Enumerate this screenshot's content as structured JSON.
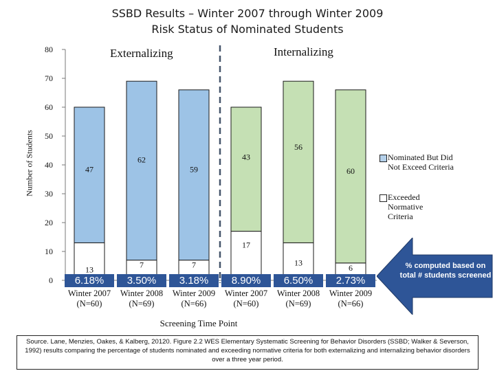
{
  "title_line1": "SSBD Results – Winter 2007 through Winter 2009",
  "title_line2": "Risk Status of Nominated Students",
  "section_labels": {
    "left": "Externalizing",
    "right": "Internalizing"
  },
  "legend": [
    {
      "label": "Nominated But Did Not Exceed Criteria"
    },
    {
      "label": "Exceeded Normative Criteria"
    }
  ],
  "arrow_note": "% computed based on total # students screened",
  "source_text": "Source. Lane, Menzies, Oakes, & Kalberg, 20120. Figure 2.2 WES Elementary Systematic Screening for Behavior Disorders (SSBD; Walker & Severson, 1992) results comparing the percentage of students nominated and exceeding normative criteria for both externalizing and internalizing behavior disorders over a three year period.",
  "colors": {
    "externalizing": "#9dc3e6",
    "internalizing": "#c5e0b4",
    "exceeded": "#ffffff",
    "percent_text": "#ffffff",
    "percent_bg": "#2e5597",
    "arrow": "#2e5597",
    "divider": "#44546a"
  },
  "chart_data": {
    "type": "bar",
    "stacked": true,
    "xlabel": "Screening Time Point",
    "ylabel": "Number of Students",
    "ylim": [
      0,
      80
    ],
    "yticks": [
      0,
      10,
      20,
      30,
      40,
      50,
      60,
      70,
      80
    ],
    "grid": false,
    "legend_position": "right",
    "categories": [
      {
        "line1": "Winter 2007",
        "line2": "(N=60)",
        "group": "externalizing"
      },
      {
        "line1": "Winter 2008",
        "line2": "(N=69)",
        "group": "externalizing"
      },
      {
        "line1": "Winter 2009",
        "line2": "(N=66)",
        "group": "externalizing"
      },
      {
        "line1": "Winter 2007",
        "line2": "(N=60)",
        "group": "internalizing"
      },
      {
        "line1": "Winter 2008",
        "line2": "(N=69)",
        "group": "internalizing"
      },
      {
        "line1": "Winter 2009",
        "line2": "(N=66)",
        "group": "internalizing"
      }
    ],
    "series": [
      {
        "name": "Exceeded Normative Criteria",
        "values": [
          13,
          7,
          7,
          17,
          13,
          6
        ]
      },
      {
        "name": "Nominated But Did Not Exceed Criteria",
        "values": [
          47,
          62,
          59,
          43,
          56,
          60
        ]
      }
    ],
    "percent_labels": [
      "6.18%",
      "3.50%",
      "3.18%",
      "8.90%",
      "6.50%",
      "2.73%"
    ]
  }
}
